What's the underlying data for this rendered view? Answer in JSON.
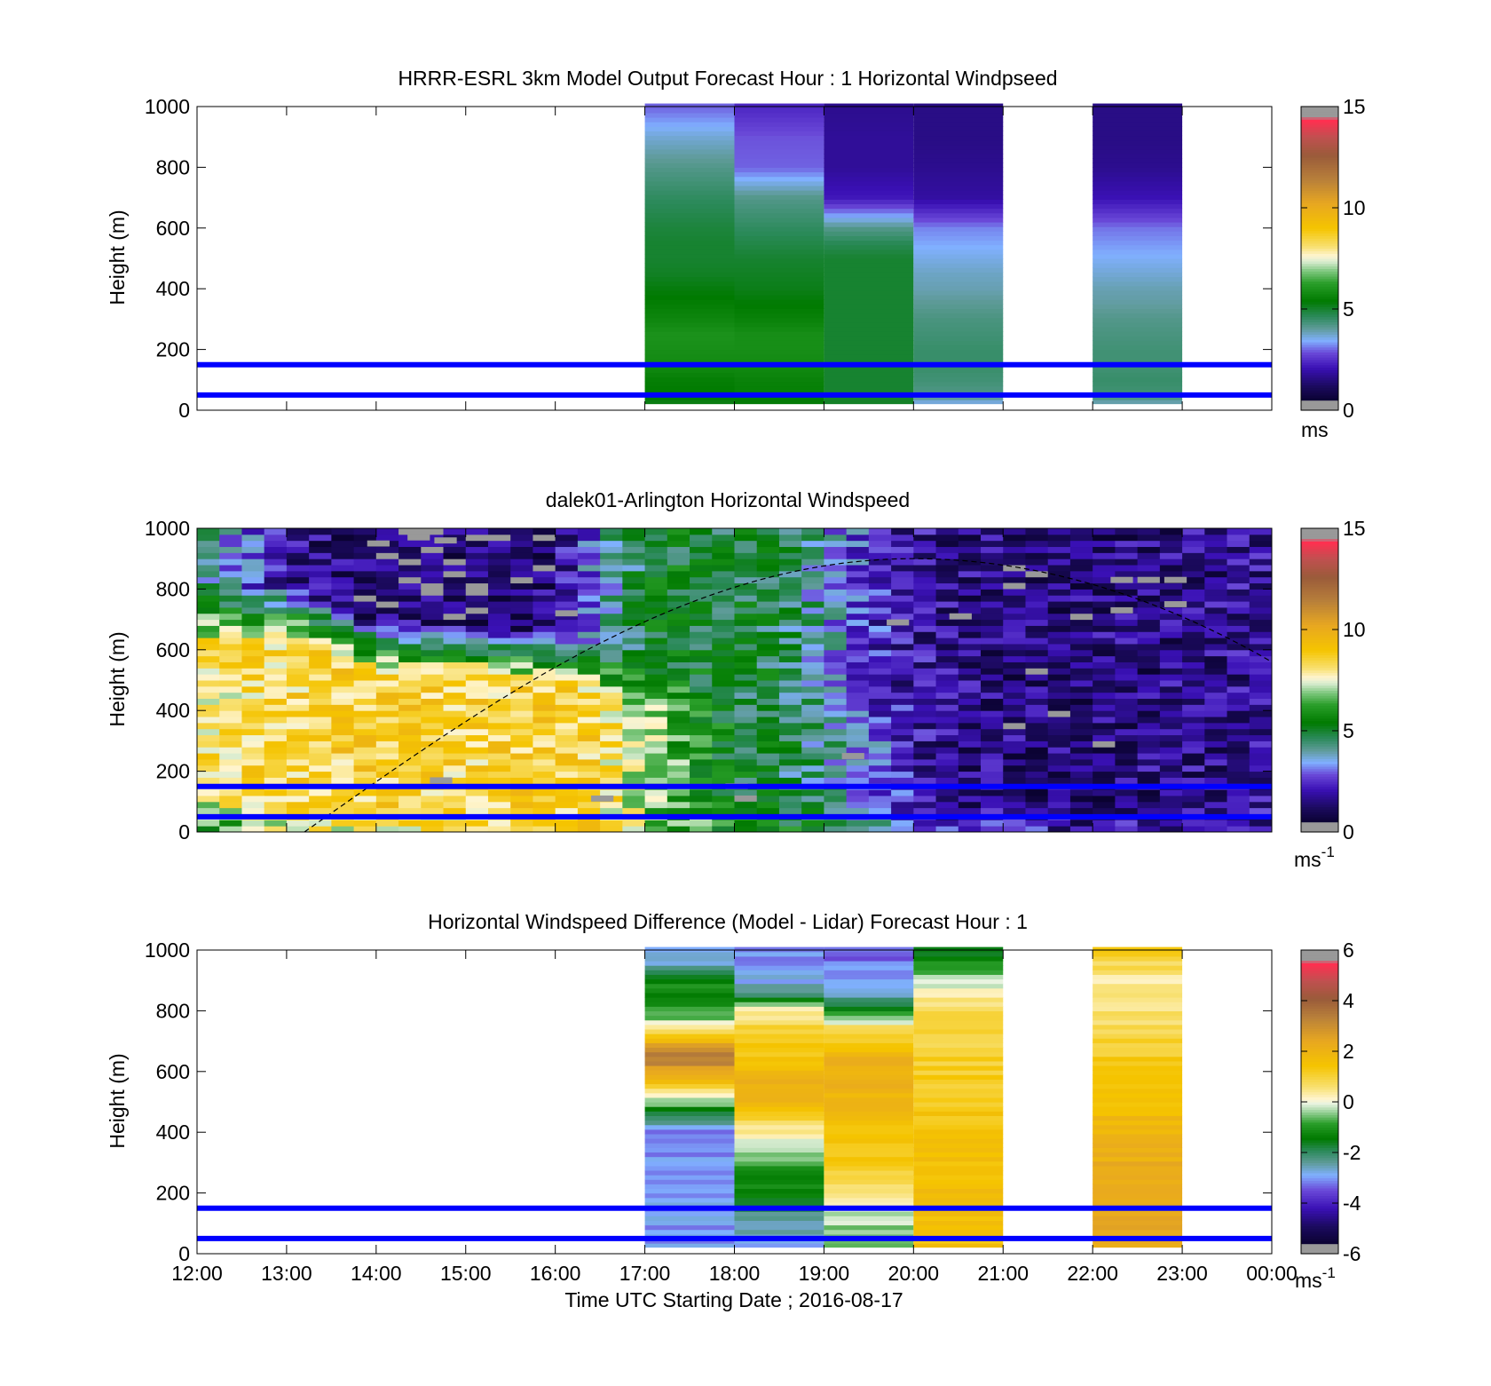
{
  "figure": {
    "xlabel": "Time UTC  Starting Date ; 2016-08-17",
    "x_ticks": [
      "12:00",
      "13:00",
      "14:00",
      "15:00",
      "16:00",
      "17:00",
      "18:00",
      "19:00",
      "20:00",
      "21:00",
      "22:00",
      "23:00",
      "00:00"
    ]
  },
  "chart_data": [
    {
      "type": "heatmap",
      "id": "model",
      "title": "HRRR-ESRL 3km Model Output   Forecast Hour : 1 Horizontal Windpseed",
      "ylabel": "Height (m)",
      "xlim_hours": [
        12,
        24
      ],
      "ylim": [
        0,
        1000
      ],
      "y_ticks": [
        "0",
        "200",
        "400",
        "600",
        "800",
        "1000"
      ],
      "colorbar": {
        "min": 0,
        "max": 15,
        "ticks": [
          "0",
          "5",
          "10",
          "15"
        ],
        "unit": "ms",
        "unit_sup": "",
        "palette": "speed"
      },
      "hlines_m": [
        150,
        50
      ],
      "hline_color": "#0000ff",
      "columns": [
        {
          "t0": 17,
          "t1": 18,
          "levels": [
            20,
            50,
            100,
            150,
            200,
            250,
            300,
            350,
            400,
            450,
            500,
            550,
            600,
            700,
            800,
            900,
            1000
          ],
          "values": [
            5.2,
            5.4,
            5.5,
            5.8,
            5.9,
            6.0,
            5.7,
            5.5,
            5.3,
            5.1,
            5.0,
            5.0,
            4.9,
            4.6,
            4.2,
            3.7,
            3.0
          ]
        },
        {
          "t0": 18,
          "t1": 19,
          "levels": [
            20,
            50,
            100,
            150,
            200,
            250,
            300,
            350,
            400,
            450,
            500,
            550,
            600,
            700,
            800,
            900,
            1000
          ],
          "values": [
            5.3,
            5.5,
            5.6,
            5.8,
            5.9,
            5.9,
            5.6,
            5.4,
            5.2,
            5.1,
            5.0,
            4.8,
            4.6,
            4.2,
            3.0,
            2.9,
            2.4
          ]
        },
        {
          "t0": 19,
          "t1": 20,
          "levels": [
            20,
            50,
            100,
            150,
            200,
            250,
            300,
            350,
            400,
            450,
            500,
            550,
            600,
            700,
            800,
            900,
            1000
          ],
          "values": [
            5.1,
            5.0,
            5.0,
            5.0,
            5.0,
            5.0,
            5.0,
            5.0,
            5.0,
            5.0,
            5.0,
            4.7,
            4.2,
            2.2,
            1.8,
            1.8,
            1.7
          ]
        },
        {
          "t0": 20,
          "t1": 21,
          "levels": [
            20,
            50,
            100,
            150,
            200,
            250,
            300,
            350,
            400,
            450,
            500,
            550,
            600,
            700,
            800,
            900,
            1000
          ],
          "values": [
            3.5,
            4.2,
            4.4,
            4.5,
            4.5,
            4.4,
            4.3,
            4.1,
            3.9,
            3.8,
            3.6,
            3.4,
            3.2,
            1.9,
            1.7,
            1.6,
            1.6
          ]
        },
        {
          "t0": 22,
          "t1": 23,
          "levels": [
            20,
            50,
            100,
            150,
            200,
            250,
            300,
            350,
            400,
            450,
            500,
            550,
            600,
            700,
            800,
            900,
            1000
          ],
          "values": [
            3.8,
            4.4,
            4.5,
            4.4,
            4.4,
            4.3,
            4.2,
            4.0,
            3.9,
            3.7,
            3.5,
            3.3,
            3.1,
            2.1,
            1.7,
            1.6,
            1.6
          ]
        }
      ]
    },
    {
      "type": "heatmap",
      "id": "lidar",
      "title": "dalek01-Arlington  Horizontal Windspeed",
      "ylabel": "Height (m)",
      "xlim_hours": [
        12,
        24
      ],
      "ylim": [
        0,
        1000
      ],
      "y_ticks": [
        "0",
        "200",
        "400",
        "600",
        "800",
        "1000"
      ],
      "colorbar": {
        "min": 0,
        "max": 15,
        "ticks": [
          "0",
          "5",
          "10",
          "15"
        ],
        "unit": "ms",
        "unit_sup": "-1",
        "palette": "speed"
      },
      "hlines_m": [
        150,
        50
      ],
      "hline_color": "#0000ff",
      "data_end_hour": 23.95,
      "column_hours": 0.25,
      "gate_m": 20,
      "profile_nodes": {
        "hours": [
          12.0,
          13.0,
          14.0,
          15.0,
          16.0,
          16.5,
          17.0,
          17.5,
          18.0,
          18.5,
          19.0,
          19.5,
          20.0,
          20.5,
          21.0,
          22.0,
          23.0,
          24.0
        ],
        "low": [
          5.5,
          7.5,
          8.0,
          8.0,
          8.5,
          8.5,
          7.0,
          6.5,
          6.0,
          5.5,
          5.0,
          4.0,
          3.0,
          2.5,
          2.2,
          2.0,
          2.0,
          2.2
        ],
        "mid": [
          8.0,
          8.5,
          8.8,
          8.5,
          8.8,
          8.5,
          7.0,
          6.2,
          5.0,
          4.8,
          4.2,
          3.2,
          2.0,
          1.5,
          1.5,
          1.4,
          1.6,
          1.8
        ],
        "top": [
          4.5,
          1.8,
          1.2,
          1.2,
          1.5,
          3.5,
          5.0,
          5.2,
          5.0,
          4.8,
          3.8,
          2.5,
          2.0,
          1.6,
          1.5,
          1.5,
          1.6,
          1.8
        ],
        "boundary": [
          620,
          640,
          520,
          520,
          480,
          440,
          400,
          350,
          320,
          330,
          310,
          300,
          250,
          200,
          150,
          150,
          150,
          150
        ]
      },
      "missing_cells": [
        [
          13.9,
          940
        ],
        [
          14.35,
          960
        ],
        [
          14.65,
          950
        ],
        [
          16.0,
          710
        ],
        [
          19.7,
          680
        ],
        [
          20.4,
          700
        ],
        [
          22.2,
          820
        ],
        [
          22.5,
          820
        ],
        [
          22.8,
          820
        ],
        [
          22.2,
          720
        ],
        [
          22.8,
          740
        ],
        [
          21.0,
          800
        ],
        [
          19.2,
          240
        ],
        [
          18.0,
          100
        ],
        [
          17.9,
          140
        ],
        [
          16.4,
          100
        ],
        [
          14.6,
          160
        ]
      ],
      "overlay": {
        "type": "curve",
        "t_start": 13.2,
        "t_peak": 20.0,
        "t_end": 24.0,
        "h_peak": 900,
        "h_end": 560
      }
    },
    {
      "type": "heatmap",
      "id": "difference",
      "title": "Horizontal Windspeed Difference (Model - Lidar) Forecast Hour : 1",
      "ylabel": "Height (m)",
      "xlim_hours": [
        12,
        24
      ],
      "ylim": [
        0,
        1000
      ],
      "y_ticks": [
        "0",
        "200",
        "400",
        "600",
        "800",
        "1000"
      ],
      "colorbar": {
        "min": -6,
        "max": 6,
        "ticks": [
          "-6",
          "-4",
          "-2",
          "0",
          "2",
          "4",
          "6"
        ],
        "unit": "ms",
        "unit_sup": "-1",
        "palette": "diff"
      },
      "hlines_m": [
        150,
        50
      ],
      "hline_color": "#0000ff",
      "columns": [
        {
          "t0": 17,
          "t1": 18,
          "levels": [
            20,
            100,
            200,
            300,
            400,
            450,
            500,
            550,
            600,
            650,
            700,
            750,
            800,
            850,
            900,
            950,
            1000
          ],
          "values": [
            -3.0,
            -3.0,
            -3.0,
            -3.0,
            -3.2,
            -2.0,
            -0.5,
            1.0,
            2.5,
            3.5,
            2.0,
            0.2,
            -1.0,
            -1.2,
            -1.2,
            -2.5,
            -3.0
          ]
        },
        {
          "t0": 18,
          "t1": 19,
          "levels": [
            20,
            100,
            200,
            300,
            400,
            450,
            500,
            550,
            600,
            650,
            700,
            750,
            800,
            850,
            900,
            950,
            1000
          ],
          "values": [
            -2.8,
            -2.5,
            -1.5,
            -0.8,
            0.3,
            1.2,
            1.8,
            2.2,
            1.8,
            1.5,
            1.2,
            1.0,
            0.3,
            -2.0,
            -2.8,
            -3.0,
            -3.0
          ]
        },
        {
          "t0": 19,
          "t1": 20,
          "levels": [
            20,
            100,
            200,
            300,
            400,
            450,
            500,
            550,
            600,
            650,
            700,
            750,
            800,
            850,
            900,
            950,
            1000
          ],
          "values": [
            -0.8,
            -0.4,
            0.4,
            1.2,
            1.5,
            1.8,
            2.0,
            2.0,
            2.0,
            2.0,
            1.2,
            0.5,
            -1.2,
            -2.5,
            -3.0,
            -3.2,
            -3.3
          ]
        },
        {
          "t0": 20,
          "t1": 21,
          "levels": [
            20,
            100,
            200,
            300,
            400,
            450,
            500,
            550,
            600,
            650,
            700,
            750,
            800,
            850,
            900,
            950,
            1000
          ],
          "values": [
            1.5,
            1.5,
            1.6,
            1.6,
            1.5,
            1.4,
            1.3,
            1.2,
            1.2,
            1.1,
            1.0,
            0.8,
            1.0,
            0.3,
            -0.2,
            -1.0,
            -1.5
          ]
        },
        {
          "t0": 22,
          "t1": 23,
          "levels": [
            20,
            100,
            200,
            300,
            400,
            450,
            500,
            550,
            600,
            650,
            700,
            750,
            800,
            850,
            900,
            950,
            1000
          ],
          "values": [
            2.3,
            2.5,
            2.4,
            2.2,
            2.0,
            1.8,
            1.6,
            1.5,
            1.4,
            1.2,
            1.0,
            0.8,
            0.6,
            0.5,
            0.4,
            0.8,
            1.2
          ]
        }
      ]
    }
  ]
}
